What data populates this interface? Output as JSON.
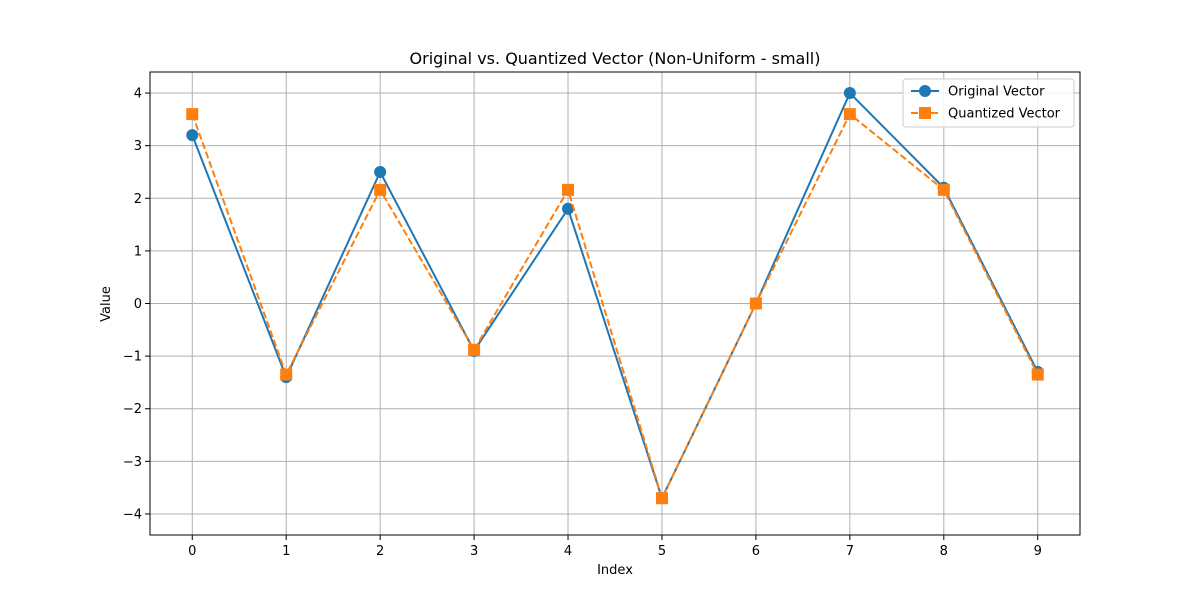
{
  "chart_data": {
    "type": "line",
    "title": "Original vs. Quantized Vector (Non-Uniform - small)",
    "xlabel": "Index",
    "ylabel": "Value",
    "x": [
      0,
      1,
      2,
      3,
      4,
      5,
      6,
      7,
      8,
      9
    ],
    "xlim": [
      -0.45,
      9.45
    ],
    "ylim": [
      -4.4,
      4.4
    ],
    "xticks": [
      "0",
      "1",
      "2",
      "3",
      "4",
      "5",
      "6",
      "7",
      "8",
      "9"
    ],
    "yticks": [
      -4,
      -3,
      -2,
      -1,
      0,
      1,
      2,
      3,
      4
    ],
    "ytick_labels": [
      "−4",
      "−3",
      "−2",
      "−1",
      "0",
      "1",
      "2",
      "3",
      "4"
    ],
    "grid": true,
    "legend_position": "top-right",
    "series": [
      {
        "name": "Original Vector",
        "values": [
          3.2,
          -1.4,
          2.5,
          -0.9,
          1.8,
          -3.7,
          0.0,
          4.0,
          2.2,
          -1.3
        ],
        "color": "#1f77b4",
        "line_style": "solid",
        "marker": "circle"
      },
      {
        "name": "Quantized Vector",
        "values": [
          3.6,
          -1.35,
          2.16,
          -0.88,
          2.16,
          -3.7,
          0.0,
          3.6,
          2.16,
          -1.35
        ],
        "color": "#ff7f0e",
        "line_style": "dashed",
        "marker": "square"
      }
    ]
  }
}
